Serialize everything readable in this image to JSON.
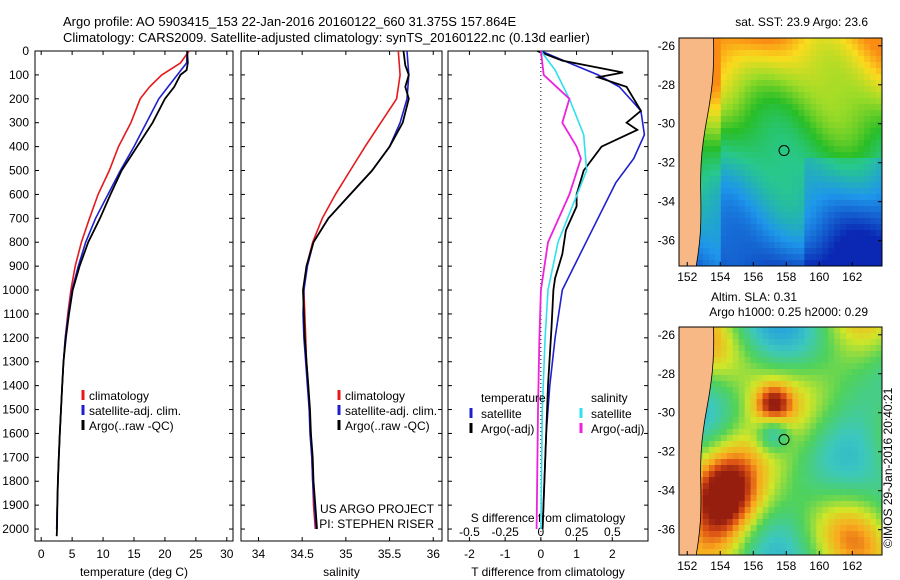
{
  "header": {
    "line1": "Argo profile: AO 5903415_153 22-Jan-2016 20160122_660 31.375S 157.864E",
    "line2": "Climatology: CARS2009. Satellite-adjusted climatology: synTS_20160122.nc (0.13d earlier)"
  },
  "colors": {
    "climatology": "#e41a1c",
    "satellite": "#1f1fcf",
    "argo": "#000000",
    "cyan": "#30e0ee",
    "magenta": "#ee22dd",
    "land": "#f7b886"
  },
  "chart_data": [
    {
      "type": "line",
      "name_key": "temperature",
      "xlabel": "temperature (deg C)",
      "ylabel": "",
      "xlim": [
        -1,
        31
      ],
      "ylim": [
        2050,
        0
      ],
      "xticks": [
        0,
        5,
        10,
        15,
        20,
        25,
        30
      ],
      "yticks": [
        0,
        100,
        200,
        300,
        400,
        500,
        600,
        700,
        800,
        900,
        1000,
        1100,
        1200,
        1300,
        1400,
        1500,
        1600,
        1700,
        1800,
        1900,
        2000
      ],
      "legend": [
        "climatology",
        "satellite-adj. clim.",
        "Argo(..raw -QC)"
      ],
      "legend_position": "lower-center",
      "series": [
        {
          "name": "climatology",
          "color": "#e41a1c",
          "points": [
            [
              23.9,
              0
            ],
            [
              22.5,
              50
            ],
            [
              19.5,
              100
            ],
            [
              17.5,
              150
            ],
            [
              16,
              200
            ],
            [
              14.5,
              300
            ],
            [
              12.5,
              400
            ],
            [
              11,
              500
            ],
            [
              9.2,
              600
            ],
            [
              7.8,
              700
            ],
            [
              6.5,
              800
            ],
            [
              5.5,
              900
            ],
            [
              4.8,
              1000
            ],
            [
              4.3,
              1100
            ],
            [
              3.9,
              1200
            ],
            [
              3.6,
              1300
            ],
            [
              3.4,
              1400
            ],
            [
              3.2,
              1500
            ],
            [
              3,
              1600
            ],
            [
              2.85,
              1700
            ],
            [
              2.7,
              1800
            ],
            [
              2.6,
              1900
            ],
            [
              2.5,
              2000
            ]
          ]
        },
        {
          "name": "satellite",
          "color": "#1f1fcf",
          "points": [
            [
              23.6,
              0
            ],
            [
              23.5,
              50
            ],
            [
              22,
              100
            ],
            [
              20.5,
              150
            ],
            [
              19,
              200
            ],
            [
              17,
              300
            ],
            [
              15,
              400
            ],
            [
              12.8,
              500
            ],
            [
              10.8,
              600
            ],
            [
              8.8,
              700
            ],
            [
              7.2,
              800
            ],
            [
              6,
              900
            ],
            [
              5,
              1000
            ],
            [
              4.4,
              1100
            ],
            [
              3.9,
              1200
            ],
            [
              3.6,
              1300
            ],
            [
              3.4,
              1400
            ],
            [
              3.2,
              1500
            ],
            [
              3,
              1600
            ],
            [
              2.85,
              1700
            ],
            [
              2.7,
              1800
            ],
            [
              2.6,
              1900
            ],
            [
              2.5,
              2000
            ]
          ]
        },
        {
          "name": "argo",
          "color": "#000000",
          "points": [
            [
              23.6,
              0
            ],
            [
              23.7,
              50
            ],
            [
              23.5,
              80
            ],
            [
              22.5,
              100
            ],
            [
              21.5,
              150
            ],
            [
              20,
              200
            ],
            [
              18,
              300
            ],
            [
              15.5,
              400
            ],
            [
              13,
              500
            ],
            [
              11.2,
              600
            ],
            [
              9.5,
              700
            ],
            [
              7.6,
              800
            ],
            [
              6.2,
              900
            ],
            [
              5.1,
              1000
            ],
            [
              4.5,
              1100
            ],
            [
              4,
              1200
            ],
            [
              3.6,
              1300
            ],
            [
              3.4,
              1400
            ],
            [
              3.2,
              1500
            ],
            [
              3,
              1600
            ],
            [
              2.85,
              1700
            ],
            [
              2.7,
              1800
            ],
            [
              2.6,
              1900
            ],
            [
              2.55,
              2000
            ],
            [
              2.5,
              2030
            ]
          ]
        }
      ]
    },
    {
      "type": "line",
      "name_key": "salinity",
      "xlabel": "salinity",
      "xlim": [
        33.8,
        36.1
      ],
      "ylim": [
        2050,
        0
      ],
      "xticks": [
        34,
        34.5,
        35,
        35.5,
        36
      ],
      "legend": [
        "climatology",
        "satellite-adj. clim.",
        "Argo(..raw -QC)"
      ],
      "legend_position": "lower-center",
      "annotations": [
        "US ARGO PROJECT",
        "PI: STEPHEN RISER"
      ],
      "series": [
        {
          "name": "climatology",
          "color": "#e41a1c",
          "points": [
            [
              35.6,
              0
            ],
            [
              35.62,
              100
            ],
            [
              35.58,
              200
            ],
            [
              35.4,
              300
            ],
            [
              35.22,
              400
            ],
            [
              35.05,
              500
            ],
            [
              34.88,
              600
            ],
            [
              34.73,
              700
            ],
            [
              34.62,
              800
            ],
            [
              34.55,
              900
            ],
            [
              34.52,
              1000
            ],
            [
              34.53,
              1100
            ],
            [
              34.54,
              1200
            ],
            [
              34.55,
              1300
            ],
            [
              34.57,
              1400
            ],
            [
              34.58,
              1500
            ],
            [
              34.6,
              1600
            ],
            [
              34.61,
              1700
            ],
            [
              34.62,
              1800
            ],
            [
              34.63,
              1900
            ],
            [
              34.65,
              2000
            ]
          ]
        },
        {
          "name": "satellite",
          "color": "#1f1fcf",
          "points": [
            [
              35.7,
              0
            ],
            [
              35.72,
              100
            ],
            [
              35.7,
              200
            ],
            [
              35.62,
              300
            ],
            [
              35.5,
              400
            ],
            [
              35.3,
              500
            ],
            [
              35.05,
              600
            ],
            [
              34.8,
              700
            ],
            [
              34.63,
              800
            ],
            [
              34.56,
              900
            ],
            [
              34.52,
              1000
            ],
            [
              34.51,
              1100
            ],
            [
              34.52,
              1200
            ],
            [
              34.54,
              1300
            ],
            [
              34.56,
              1400
            ],
            [
              34.58,
              1500
            ],
            [
              34.59,
              1600
            ],
            [
              34.61,
              1700
            ],
            [
              34.62,
              1800
            ],
            [
              34.64,
              1900
            ],
            [
              34.66,
              2000
            ]
          ]
        },
        {
          "name": "argo",
          "color": "#000000",
          "points": [
            [
              35.66,
              0
            ],
            [
              35.68,
              60
            ],
            [
              35.72,
              100
            ],
            [
              35.68,
              150
            ],
            [
              35.72,
              200
            ],
            [
              35.65,
              300
            ],
            [
              35.5,
              400
            ],
            [
              35.3,
              500
            ],
            [
              35.05,
              600
            ],
            [
              34.8,
              700
            ],
            [
              34.63,
              800
            ],
            [
              34.55,
              900
            ],
            [
              34.51,
              1000
            ],
            [
              34.52,
              1100
            ],
            [
              34.53,
              1200
            ],
            [
              34.55,
              1300
            ],
            [
              34.57,
              1400
            ],
            [
              34.59,
              1500
            ],
            [
              34.6,
              1600
            ],
            [
              34.62,
              1700
            ],
            [
              34.63,
              1800
            ],
            [
              34.65,
              1900
            ],
            [
              34.67,
              2000
            ]
          ]
        }
      ]
    },
    {
      "type": "line",
      "name_key": "difference",
      "xlabel": "T difference from climatology",
      "top_axis_label": "S difference from climatology",
      "xlim": [
        -2.6,
        3.0
      ],
      "ylim": [
        2050,
        0
      ],
      "xticks": [
        -2,
        -1,
        0,
        1,
        2
      ],
      "top_ticks": [
        {
          "value": -0.5,
          "label": "-0.5"
        },
        {
          "value": -0.25,
          "label": "-0.25"
        },
        {
          "value": 0,
          "label": "0"
        },
        {
          "value": 0.25,
          "label": "0.25"
        },
        {
          "value": 0.5,
          "label": "0.5"
        }
      ],
      "legend_groups": [
        {
          "title": "temperature",
          "items": [
            {
              "label": "satellite",
              "key": "satellite"
            },
            {
              "label": "Argo(-adj)",
              "key": "argo"
            }
          ]
        },
        {
          "title": "salinity",
          "items": [
            {
              "label": "satellite",
              "key": "cyan"
            },
            {
              "label": "Argo(-adj)",
              "key": "magenta"
            }
          ]
        }
      ],
      "series": [
        {
          "name": "T satellite",
          "color": "#1f1fcf",
          "points": [
            [
              0,
              0
            ],
            [
              0.8,
              50
            ],
            [
              1.6,
              100
            ],
            [
              2.2,
              150
            ],
            [
              2.8,
              250
            ],
            [
              2.9,
              350
            ],
            [
              2.6,
              450
            ],
            [
              2.1,
              550
            ],
            [
              1.6,
              700
            ],
            [
              1.1,
              850
            ],
            [
              0.6,
              1000
            ],
            [
              0.4,
              1200
            ],
            [
              0.25,
              1400
            ],
            [
              0.15,
              1600
            ],
            [
              0.1,
              1800
            ],
            [
              0.05,
              2000
            ]
          ]
        },
        {
          "name": "T argo",
          "color": "#000000",
          "points": [
            [
              -0.1,
              0
            ],
            [
              0.6,
              40
            ],
            [
              2.3,
              90
            ],
            [
              1.6,
              110
            ],
            [
              2.4,
              150
            ],
            [
              2.8,
              250
            ],
            [
              2.4,
              300
            ],
            [
              2.7,
              330
            ],
            [
              1.7,
              400
            ],
            [
              1.2,
              500
            ],
            [
              1,
              600
            ],
            [
              1,
              650
            ],
            [
              0.7,
              750
            ],
            [
              0.6,
              850
            ],
            [
              0.4,
              950
            ],
            [
              0.35,
              1000
            ],
            [
              0.3,
              1150
            ],
            [
              0.2,
              1400
            ],
            [
              0.15,
              1600
            ],
            [
              0.1,
              1800
            ],
            [
              0.05,
              2000
            ]
          ]
        },
        {
          "name": "S satellite",
          "color": "#30e0ee",
          "points": [
            [
              0,
              0
            ],
            [
              0.1,
              80
            ],
            [
              0.2,
              200
            ],
            [
              0.3,
              350
            ],
            [
              0.32,
              500
            ],
            [
              0.22,
              650
            ],
            [
              0.12,
              800
            ],
            [
              0.05,
              1000
            ],
            [
              0.03,
              1200
            ],
            [
              0.01,
              1500
            ],
            [
              0,
              2000
            ]
          ]
        },
        {
          "name": "S argo",
          "color": "#ee22dd",
          "points": [
            [
              0,
              0
            ],
            [
              0.02,
              100
            ],
            [
              0.2,
              200
            ],
            [
              0.15,
              300
            ],
            [
              0.25,
              400
            ],
            [
              0.28,
              450
            ],
            [
              0.2,
              600
            ],
            [
              0.05,
              800
            ],
            [
              0,
              1000
            ],
            [
              -0.01,
              1200
            ],
            [
              -0.02,
              1500
            ],
            [
              -0.03,
              2000
            ]
          ]
        }
      ]
    }
  ],
  "maps": [
    {
      "title": "sat. SST: 23.9  Argo: 23.6",
      "xticks": [
        "152",
        "154",
        "156",
        "158",
        "160",
        "162"
      ],
      "yticks": [
        "-26",
        "-28",
        "-30",
        "-32",
        "-34",
        "-36"
      ],
      "lon_range": [
        151.5,
        163.8
      ],
      "lat_range": [
        -37.3,
        -25.6
      ],
      "float_position": {
        "lon": 157.864,
        "lat": -31.375
      }
    },
    {
      "title": "Altim. SLA: 0.31",
      "subtitle": "Argo h1000: 0.25 h2000: 0.29",
      "xticks": [
        "152",
        "154",
        "156",
        "158",
        "160",
        "162"
      ],
      "yticks": [
        "-26",
        "-28",
        "-30",
        "-32",
        "-34",
        "-36"
      ],
      "lon_range": [
        151.5,
        163.8
      ],
      "lat_range": [
        -37.3,
        -25.6
      ],
      "float_position": {
        "lon": 157.864,
        "lat": -31.375
      }
    }
  ],
  "credit": "©IMOS 29-Jan-2016 20:40:21"
}
